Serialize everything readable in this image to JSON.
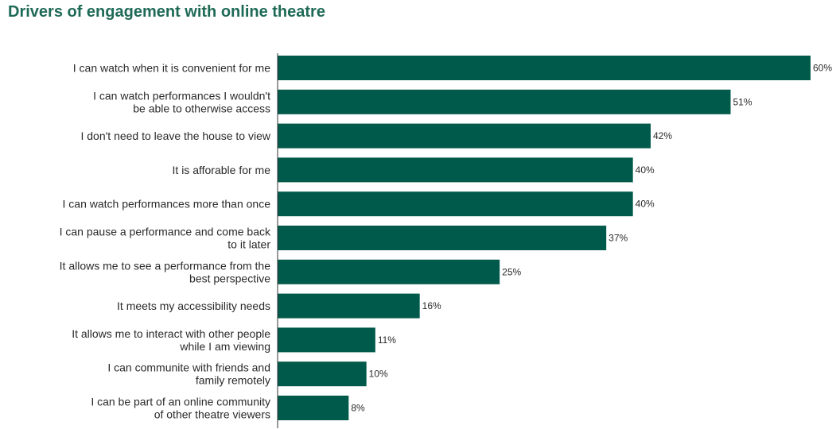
{
  "chart_data": {
    "type": "bar",
    "orientation": "horizontal",
    "title": "Drivers of engagement with online theatre",
    "xlabel": "",
    "ylabel": "",
    "categories": [
      "I can watch when it is convenient for me",
      "I can watch performances I wouldn't be able to otherwise access",
      "I don't need to leave the house to view",
      "It is afforable for me",
      "I can watch performances more than once",
      "I can pause a performance and come back to it later",
      "It allows me to see a performance from the best perspective",
      "It meets my accessibility needs",
      "It allows me to interact with other people while I am viewing",
      "I can communite with friends and family remotely",
      "I can be part of an online community of other theatre viewers"
    ],
    "category_lines": [
      [
        "I can watch when it is convenient for me"
      ],
      [
        "I can watch performances I wouldn't",
        "be able to otherwise access"
      ],
      [
        "I don't need to leave the house to view"
      ],
      [
        "It is afforable for me"
      ],
      [
        "I can watch performances more than once"
      ],
      [
        "I can pause a performance and come back",
        "to it later"
      ],
      [
        "It allows me to see a performance from the",
        "best perspective"
      ],
      [
        "It meets my accessibility needs"
      ],
      [
        "It allows me to interact with other people",
        "while I am viewing"
      ],
      [
        "I can communite with friends and",
        "family remotely"
      ],
      [
        "I can be part of an online community",
        "of other theatre viewers"
      ]
    ],
    "values": [
      60,
      51,
      42,
      40,
      40,
      37,
      25,
      16,
      11,
      10,
      8
    ],
    "value_labels": [
      "60%",
      "51%",
      "42%",
      "40%",
      "40%",
      "37%",
      "25%",
      "16%",
      "11%",
      "10%",
      "8%"
    ],
    "unit": "%",
    "xlim": [
      0,
      60
    ],
    "grid": false,
    "legend": "none",
    "bar_color": "#005a4b",
    "title_color": "#1f6a56"
  }
}
